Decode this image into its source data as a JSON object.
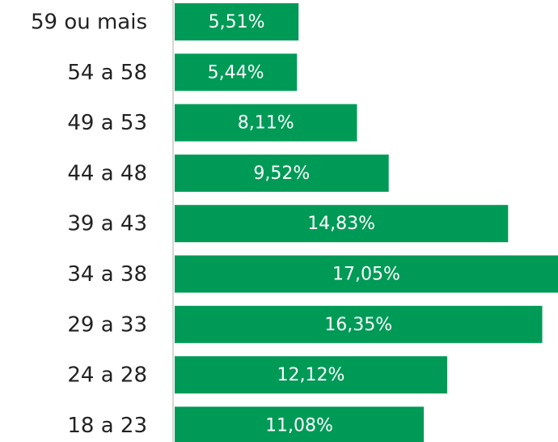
{
  "chart_data": {
    "type": "barh",
    "categories": [
      "59 ou mais",
      "54 a 58",
      "49 a 53",
      "44 a 48",
      "39 a 43",
      "34 a 38",
      "29 a 33",
      "24 a 28",
      "18 a 23"
    ],
    "values": [
      5.51,
      5.44,
      8.11,
      9.52,
      14.83,
      17.05,
      16.35,
      12.12,
      11.08
    ],
    "value_labels": [
      "5,51%",
      "5,44%",
      "8,11%",
      "9,52%",
      "14,83%",
      "17,05%",
      "16,35%",
      "12,12%",
      "11,08%"
    ],
    "color": "#009a57"
  }
}
